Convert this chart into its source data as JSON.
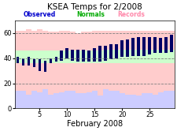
{
  "title": "KSEA Temps for 2/2008",
  "xlabel": "February 2008",
  "days": [
    1,
    2,
    3,
    4,
    5,
    6,
    7,
    8,
    9,
    10,
    11,
    12,
    13,
    14,
    15,
    16,
    17,
    18,
    19,
    20,
    21,
    22,
    23,
    24,
    25,
    26,
    27,
    28,
    29
  ],
  "obs_high": [
    41,
    40,
    41,
    39,
    39,
    38,
    40,
    41,
    46,
    48,
    47,
    47,
    47,
    46,
    48,
    50,
    50,
    51,
    51,
    54,
    55,
    56,
    57,
    57,
    57,
    57,
    56,
    57,
    59
  ],
  "obs_low": [
    36,
    34,
    34,
    33,
    30,
    29,
    36,
    37,
    38,
    40,
    38,
    37,
    37,
    37,
    37,
    37,
    38,
    39,
    40,
    41,
    41,
    42,
    42,
    42,
    43,
    44,
    44,
    44,
    45
  ],
  "normal_high": [
    46,
    46,
    46,
    46,
    46,
    46,
    46,
    46,
    46,
    46,
    46,
    46,
    46,
    46,
    46,
    46,
    47,
    47,
    47,
    47,
    47,
    47,
    47,
    47,
    47,
    47,
    47,
    47,
    47
  ],
  "normal_low": [
    36,
    36,
    36,
    36,
    36,
    36,
    36,
    36,
    36,
    36,
    36,
    36,
    36,
    36,
    36,
    36,
    36,
    36,
    36,
    36,
    36,
    36,
    36,
    36,
    36,
    36,
    36,
    36,
    36
  ],
  "record_high": [
    62,
    62,
    63,
    62,
    63,
    62,
    61,
    61,
    62,
    62,
    61,
    60,
    61,
    61,
    62,
    62,
    62,
    62,
    62,
    62,
    62,
    62,
    62,
    62,
    62,
    62,
    62,
    62,
    62
  ],
  "record_low": [
    14,
    14,
    11,
    14,
    13,
    15,
    11,
    12,
    13,
    14,
    14,
    12,
    12,
    13,
    14,
    10,
    15,
    14,
    14,
    12,
    11,
    11,
    10,
    12,
    12,
    11,
    13,
    14,
    14
  ],
  "ylim": [
    0,
    70
  ],
  "yticks": [
    0,
    20,
    40,
    60
  ],
  "xticks": [
    5,
    10,
    15,
    20,
    25
  ],
  "dashed_lines": [
    20,
    40,
    60
  ],
  "record_high_color": "#ffcccc",
  "normal_fill_color": "#ccffcc",
  "record_low_color": "#ccccff",
  "obs_bar_color": "#000066",
  "title_color": "#000000",
  "legend_observed_color": "#0000cc",
  "legend_normals_color": "#00aa00",
  "legend_records_color": "#ff88aa",
  "background_color": "#ffffff"
}
